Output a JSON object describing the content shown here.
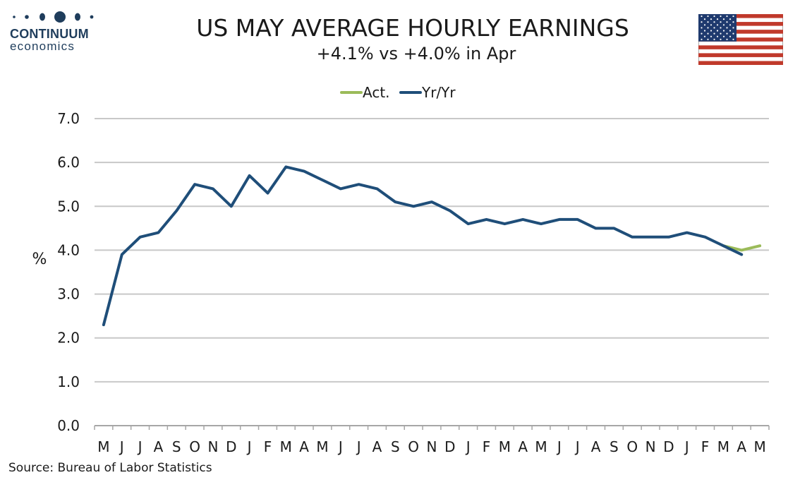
{
  "brand": {
    "name": "CONTINUUM",
    "sub": "economics"
  },
  "header": {
    "title": "US MAY AVERAGE HOURLY EARNINGS",
    "subtitle": "+4.1% vs +4.0% in Apr"
  },
  "flag_icon": "us-flag-icon",
  "source": "Source: Bureau of Labor Statistics",
  "colors": {
    "act": "#9bbb59",
    "yoy": "#1f4e79",
    "grid": "#c8c8c8",
    "logo": "#1f3d5c"
  },
  "chart_data": {
    "type": "line",
    "ylabel": "%",
    "ylim": [
      0,
      7
    ],
    "yticks": [
      "0.0",
      "1.0",
      "2.0",
      "3.0",
      "4.0",
      "5.0",
      "6.0",
      "7.0"
    ],
    "categories": [
      "M",
      "J",
      "J",
      "A",
      "S",
      "O",
      "N",
      "D",
      "J",
      "F",
      "M",
      "A",
      "M",
      "J",
      "J",
      "A",
      "S",
      "O",
      "N",
      "D",
      "J",
      "F",
      "M",
      "A",
      "M",
      "J",
      "J",
      "A",
      "S",
      "O",
      "N",
      "D",
      "J",
      "F",
      "M",
      "A",
      "M"
    ],
    "legend_position": "top-center",
    "grid": true,
    "series": [
      {
        "name": "Act.",
        "color": "#9bbb59",
        "values": [
          null,
          null,
          null,
          null,
          null,
          null,
          null,
          null,
          null,
          null,
          null,
          null,
          null,
          null,
          null,
          null,
          null,
          null,
          null,
          null,
          null,
          null,
          null,
          null,
          null,
          null,
          null,
          null,
          null,
          null,
          null,
          null,
          null,
          null,
          4.1,
          4.0,
          4.1
        ]
      },
      {
        "name": "Yr/Yr",
        "color": "#1f4e79",
        "values": [
          2.3,
          3.9,
          4.3,
          4.4,
          4.9,
          5.5,
          5.4,
          5.0,
          5.7,
          5.3,
          5.9,
          5.8,
          5.6,
          5.4,
          5.5,
          5.4,
          5.1,
          5.0,
          5.1,
          4.9,
          4.6,
          4.7,
          4.6,
          4.7,
          4.6,
          4.7,
          4.7,
          4.5,
          4.5,
          4.3,
          4.3,
          4.3,
          4.4,
          4.3,
          4.1,
          3.9,
          null
        ]
      }
    ]
  }
}
